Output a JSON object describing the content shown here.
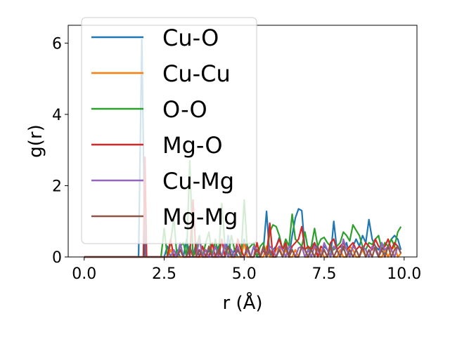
{
  "chart_data": {
    "type": "line",
    "xlabel": "r (Å)",
    "ylabel": "g(r)",
    "xlim": [
      -0.5,
      10.4
    ],
    "ylim": [
      0,
      6.5
    ],
    "xticks": [
      {
        "value": 0.0,
        "label": "0.0"
      },
      {
        "value": 2.5,
        "label": "2.5"
      },
      {
        "value": 5.0,
        "label": "5.0"
      },
      {
        "value": 7.5,
        "label": "7.5"
      },
      {
        "value": 10.0,
        "label": "10.0"
      }
    ],
    "yticks": [
      {
        "value": 0,
        "label": "0"
      },
      {
        "value": 2,
        "label": "2"
      },
      {
        "value": 4,
        "label": "4"
      },
      {
        "value": 6,
        "label": "6"
      }
    ],
    "grid": false,
    "legend_position": "upper-left",
    "series": [
      {
        "name": "Cu-O",
        "color": "#1f77b4",
        "x": [
          0,
          1.7,
          1.8,
          1.9,
          2.0,
          2.1,
          2.2,
          2.3,
          2.4,
          2.5,
          2.6,
          2.7,
          2.8,
          2.9,
          3.0,
          3.1,
          3.2,
          3.3,
          3.4,
          3.5,
          3.6,
          3.7,
          3.8,
          3.9,
          4.0,
          4.1,
          4.2,
          4.3,
          4.4,
          4.5,
          4.6,
          4.7,
          4.8,
          4.9,
          5.0,
          5.1,
          5.2,
          5.3,
          5.4,
          5.5,
          5.6,
          5.7,
          5.8,
          5.9,
          6.0,
          6.1,
          6.2,
          6.3,
          6.4,
          6.5,
          6.6,
          6.7,
          6.8,
          6.9,
          7.0,
          7.1,
          7.2,
          7.3,
          7.4,
          7.5,
          7.6,
          7.7,
          7.8,
          7.9,
          8.0,
          8.1,
          8.2,
          8.3,
          8.4,
          8.5,
          8.6,
          8.7,
          8.8,
          8.9,
          9.0,
          9.1,
          9.2,
          9.3,
          9.4,
          9.5,
          9.6,
          9.7,
          9.8,
          9.9
        ],
        "y": [
          0,
          0,
          6.1,
          0,
          0,
          0,
          0,
          0,
          0,
          0,
          0.3,
          0,
          0,
          0.2,
          0,
          0,
          0.5,
          0,
          0,
          0.4,
          0,
          0,
          0,
          0.2,
          0,
          0,
          0.3,
          0,
          0,
          0.6,
          0,
          0.2,
          0,
          0,
          0.5,
          0,
          0,
          0.3,
          0,
          0,
          0.2,
          1.28,
          0,
          0.2,
          0.3,
          0.55,
          0.2,
          0.4,
          0,
          0.6,
          1.1,
          1.35,
          1.3,
          0.2,
          0,
          0.3,
          0.4,
          0.2,
          0,
          0.3,
          0.2,
          0,
          1.0,
          0.2,
          0.3,
          0.2,
          0.4,
          0,
          0.3,
          0.5,
          0.3,
          0.6,
          0.4,
          1.05,
          0.5,
          0.3,
          0.2,
          0.4,
          0.1,
          0.3,
          0.5,
          0.6,
          0.5,
          0.2
        ]
      },
      {
        "name": "Cu-Cu",
        "color": "#ff7f0e",
        "x": [
          0,
          2.5,
          2.6,
          2.7,
          2.8,
          2.9,
          3.0,
          3.1,
          3.2,
          3.3,
          3.4,
          3.5,
          3.6,
          3.7,
          3.8,
          3.9,
          4.0,
          4.1,
          4.2,
          4.3,
          4.4,
          4.5,
          4.6,
          4.7,
          4.8,
          4.9,
          5.0,
          5.1,
          5.2,
          5.3,
          5.4,
          5.5,
          5.6,
          5.7,
          5.8,
          5.9,
          6.0,
          6.1,
          6.2,
          6.3,
          6.4,
          6.5,
          6.6,
          6.7,
          6.8,
          6.9,
          7.0,
          7.1,
          7.2,
          7.3,
          7.4,
          7.5,
          7.6,
          7.7,
          7.8,
          7.9,
          8.0,
          8.1,
          8.2,
          8.3,
          8.4,
          8.5,
          8.6,
          8.7,
          8.8,
          8.9,
          9.0,
          9.1,
          9.2,
          9.3,
          9.4,
          9.5,
          9.6,
          9.7,
          9.8,
          9.9
        ],
        "y": [
          0,
          0,
          0,
          0.2,
          0,
          0,
          0,
          0,
          0,
          0,
          1.6,
          0,
          0,
          0,
          0,
          0.3,
          0,
          0,
          0,
          0,
          0.3,
          0,
          0,
          0,
          0,
          0,
          0.4,
          0,
          0,
          0,
          0.2,
          0,
          0,
          0.3,
          0,
          0,
          0.2,
          0.3,
          0,
          0.2,
          0,
          0,
          0.2,
          0,
          0.3,
          0,
          0,
          0.2,
          0.3,
          0,
          0.2,
          0,
          0,
          0.3,
          0,
          0,
          0.2,
          0,
          0,
          0.3,
          0.2,
          0,
          0,
          0.2,
          0,
          0.2,
          0,
          0.3,
          0,
          0,
          0.2,
          0,
          0.2,
          0.3,
          0,
          0.1
        ]
      },
      {
        "name": "O-O",
        "color": "#2ca02c",
        "x": [
          0,
          2.4,
          2.5,
          2.6,
          2.7,
          2.8,
          2.9,
          3.0,
          3.1,
          3.2,
          3.3,
          3.4,
          3.5,
          3.6,
          3.7,
          3.8,
          3.9,
          4.0,
          4.1,
          4.2,
          4.3,
          4.4,
          4.5,
          4.6,
          4.7,
          4.8,
          4.9,
          5.0,
          5.1,
          5.2,
          5.3,
          5.4,
          5.5,
          5.6,
          5.7,
          5.8,
          5.9,
          6.0,
          6.1,
          6.2,
          6.3,
          6.4,
          6.5,
          6.6,
          6.7,
          6.8,
          6.9,
          7.0,
          7.1,
          7.2,
          7.3,
          7.4,
          7.5,
          7.6,
          7.7,
          7.8,
          7.9,
          8.0,
          8.1,
          8.2,
          8.3,
          8.4,
          8.5,
          8.6,
          8.7,
          8.8,
          8.9,
          9.0,
          9.1,
          9.2,
          9.3,
          9.4,
          9.5,
          9.6,
          9.7,
          9.8,
          9.9
        ],
        "y": [
          0,
          0,
          0.8,
          0,
          0.4,
          1.1,
          0,
          0.3,
          0.4,
          0,
          2.7,
          0,
          0.2,
          0.6,
          0,
          0.4,
          0.7,
          0,
          0.5,
          0,
          1.5,
          0.3,
          0,
          0.6,
          0.2,
          0.3,
          0,
          1.6,
          0.2,
          0.3,
          0.4,
          0,
          0.3,
          0.4,
          0,
          0.7,
          0.9,
          0.85,
          0.6,
          0.2,
          0.5,
          0.3,
          1.2,
          0.5,
          0.4,
          0.3,
          0.7,
          0.2,
          0.3,
          0.8,
          0.3,
          0.5,
          0.55,
          0.4,
          0.3,
          0.2,
          0.3,
          0.4,
          0.7,
          0.6,
          0.45,
          0.9,
          0.75,
          0.6,
          0.3,
          0.2,
          0.4,
          0.35,
          0.5,
          0.6,
          0.2,
          0.4,
          0.3,
          0.5,
          0.3,
          0.7,
          0.85
        ]
      },
      {
        "name": "Mg-O",
        "color": "#d62728",
        "x": [
          0,
          1.85,
          1.9,
          1.95,
          2.0,
          2.1,
          2.2,
          2.3,
          2.4,
          2.5,
          2.6,
          2.7,
          2.8,
          2.9,
          3.0,
          3.1,
          3.2,
          3.3,
          3.4,
          3.5,
          3.6,
          3.7,
          3.8,
          3.9,
          4.0,
          4.1,
          4.2,
          4.3,
          4.4,
          4.5,
          4.6,
          4.7,
          4.8,
          4.9,
          5.0,
          5.1,
          5.2,
          5.3,
          5.4,
          5.5,
          5.6,
          5.7,
          5.8,
          5.9,
          6.0,
          6.1,
          6.2,
          6.3,
          6.4,
          6.5,
          6.6,
          6.7,
          6.8,
          6.9,
          7.0,
          7.1,
          7.2,
          7.3,
          7.4,
          7.5,
          7.6,
          7.7,
          7.8,
          7.9,
          8.0,
          8.1,
          8.2,
          8.3,
          8.4,
          8.5,
          8.6,
          8.7,
          8.8,
          8.9,
          9.0,
          9.1,
          9.2,
          9.3,
          9.4,
          9.5,
          9.6,
          9.7,
          9.8,
          9.9
        ],
        "y": [
          0,
          0,
          2.8,
          0,
          0,
          0,
          0,
          0,
          0,
          0,
          0,
          0.5,
          0,
          0,
          0.2,
          0,
          0,
          0,
          1.6,
          0,
          0,
          0.3,
          0,
          0,
          0.4,
          0,
          0,
          0.5,
          0,
          0.3,
          0,
          0,
          0.5,
          0.2,
          0,
          0.3,
          0,
          0,
          0.4,
          0,
          0.2,
          0,
          0.95,
          0,
          0.3,
          0.5,
          0.2,
          0.4,
          0,
          0.3,
          0.4,
          0.5,
          0.85,
          0.2,
          0.3,
          0.2,
          0.4,
          0,
          0.3,
          0.2,
          0,
          0.4,
          0.5,
          0.2,
          0.3,
          0.4,
          0.2,
          0.3,
          0.4,
          0.2,
          0.3,
          0.2,
          0.4,
          0.3,
          0.2,
          0.5,
          0.3,
          0.2,
          0.3,
          0.5,
          0.2,
          0.4,
          0.3,
          0.1
        ]
      },
      {
        "name": "Cu-Mg",
        "color": "#9467bd",
        "x": [
          0,
          2.6,
          2.7,
          2.8,
          2.9,
          3.0,
          3.1,
          3.2,
          3.3,
          3.4,
          3.5,
          3.6,
          3.7,
          3.8,
          3.9,
          4.0,
          4.1,
          4.2,
          4.3,
          4.4,
          4.5,
          4.6,
          4.7,
          4.8,
          4.9,
          5.0,
          5.1,
          5.2,
          5.3,
          5.4,
          5.5,
          5.6,
          5.7,
          5.8,
          5.9,
          6.0,
          6.1,
          6.2,
          6.3,
          6.4,
          6.5,
          6.6,
          6.7,
          6.8,
          6.9,
          7.0,
          7.1,
          7.2,
          7.3,
          7.4,
          7.5,
          7.6,
          7.7,
          7.8,
          7.9,
          8.0,
          8.1,
          8.2,
          8.3,
          8.4,
          8.5,
          8.6,
          8.7,
          8.8,
          8.9,
          9.0,
          9.1,
          9.2,
          9.3,
          9.4,
          9.5,
          9.6,
          9.7,
          9.8,
          9.9
        ],
        "y": [
          0,
          0,
          0,
          0.2,
          0,
          0.4,
          0,
          0,
          0.3,
          0,
          0,
          0.5,
          0,
          0.2,
          0,
          0,
          0.3,
          0,
          0,
          0.4,
          0,
          0.2,
          0,
          0.3,
          0,
          0,
          0.2,
          0,
          0.3,
          0.2,
          0,
          0.25,
          0,
          0.3,
          0.2,
          0,
          0.3,
          0.2,
          0,
          0.3,
          0.2,
          0,
          0.25,
          0.3,
          0,
          0.2,
          0,
          0.3,
          0.2,
          0,
          0.4,
          0.2,
          0,
          0.3,
          0.2,
          0,
          0.5,
          0.2,
          0,
          0.3,
          0.2,
          0,
          0.3,
          0.2,
          0,
          0.3,
          0.2,
          0,
          0.4,
          0.2,
          0.3,
          0.2,
          0,
          0.3,
          0.1
        ]
      },
      {
        "name": "Mg-Mg",
        "color": "#8c564b",
        "x": [
          0,
          2.9,
          3.0,
          3.1,
          3.2,
          3.3,
          3.4,
          3.5,
          3.6,
          3.7,
          3.8,
          3.9,
          4.0,
          4.1,
          4.2,
          4.3,
          4.4,
          4.5,
          4.6,
          4.7,
          4.8,
          4.9,
          5.0,
          5.1,
          5.2,
          5.3,
          5.4,
          5.5,
          5.6,
          5.7,
          5.8,
          5.9,
          6.0,
          6.1,
          6.2,
          6.3,
          6.4,
          6.5,
          6.6,
          6.7,
          6.8,
          6.9,
          7.0,
          7.1,
          7.2,
          7.3,
          7.4,
          7.5,
          7.6,
          7.7,
          7.8,
          7.9,
          8.0,
          8.1,
          8.2,
          8.3,
          8.4,
          8.5,
          8.6,
          8.7,
          8.8,
          8.9,
          9.0,
          9.1,
          9.2,
          9.3,
          9.4,
          9.5,
          9.6,
          9.7,
          9.8,
          9.9
        ],
        "y": [
          0,
          0,
          0.2,
          0,
          0,
          0.3,
          0,
          0,
          0.2,
          0,
          0,
          0.3,
          0,
          0,
          0.2,
          0,
          0,
          0.3,
          0,
          0,
          0.2,
          0,
          0,
          0.3,
          0,
          0,
          0.2,
          0,
          0.3,
          0,
          0.2,
          0,
          0,
          0.2,
          0,
          0.3,
          0,
          0.2,
          0,
          0,
          0.3,
          0.2,
          0,
          0.2,
          0,
          0.3,
          0,
          0.2,
          0,
          0.3,
          0,
          0.2,
          0,
          0.3,
          0,
          0.2,
          0,
          0.2,
          0,
          0.3,
          0,
          0.2,
          0,
          0.3,
          0,
          0.2,
          0,
          0.3,
          0,
          0.2,
          0.3,
          0.1
        ]
      }
    ]
  }
}
